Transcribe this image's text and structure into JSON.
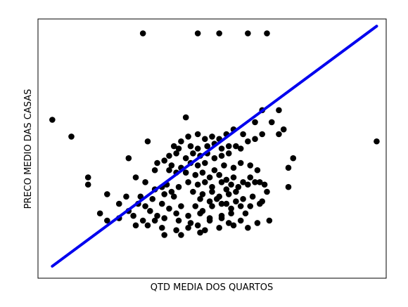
{
  "chart_data": {
    "type": "scatter",
    "title": "",
    "xlabel": "QTD MEDIA DOS QUARTOS",
    "ylabel": "PRECO MEDIO DAS CASAS",
    "show_ticks": false,
    "grid": false,
    "legend": "none",
    "xlim": [
      -0.3,
      14.3
    ],
    "ylim": [
      -0.5,
      10.3
    ],
    "colors": {
      "points": "#000000",
      "fit_line": "#0000ee",
      "frame": "#000000",
      "background": "#ffffff"
    },
    "series": [
      {
        "kind": "points",
        "points": [
          [
            4.1,
            9.7
          ],
          [
            6.4,
            9.7
          ],
          [
            7.3,
            9.7
          ],
          [
            8.5,
            9.7
          ],
          [
            9.3,
            9.7
          ],
          [
            0.3,
            6.1
          ],
          [
            1.1,
            5.4
          ],
          [
            13.9,
            5.2
          ],
          [
            5.9,
            6.2
          ],
          [
            9.1,
            6.5
          ],
          [
            9.8,
            6.5
          ],
          [
            8.8,
            6.0
          ],
          [
            9.5,
            6.0
          ],
          [
            10.0,
            5.7
          ],
          [
            9.8,
            5.5
          ],
          [
            9.1,
            5.5
          ],
          [
            8.8,
            5.3
          ],
          [
            8.5,
            5.2
          ],
          [
            8.3,
            5.5
          ],
          [
            7.9,
            5.7
          ],
          [
            7.6,
            5.5
          ],
          [
            7.3,
            5.3
          ],
          [
            7.0,
            5.4
          ],
          [
            6.7,
            5.3
          ],
          [
            6.4,
            5.5
          ],
          [
            6.0,
            5.4
          ],
          [
            5.7,
            5.2
          ],
          [
            5.4,
            5.0
          ],
          [
            5.6,
            4.9
          ],
          [
            6.1,
            5.0
          ],
          [
            6.4,
            4.9
          ],
          [
            6.8,
            5.0
          ],
          [
            7.1,
            5.1
          ],
          [
            7.4,
            4.9
          ],
          [
            7.7,
            5.0
          ],
          [
            8.0,
            5.0
          ],
          [
            8.2,
            4.9
          ],
          [
            4.3,
            5.2
          ],
          [
            5.2,
            4.6
          ],
          [
            5.5,
            4.7
          ],
          [
            5.9,
            4.5
          ],
          [
            6.2,
            4.7
          ],
          [
            6.5,
            4.6
          ],
          [
            6.8,
            4.7
          ],
          [
            7.1,
            4.5
          ],
          [
            7.4,
            4.6
          ],
          [
            7.7,
            4.7
          ],
          [
            3.5,
            4.5
          ],
          [
            4.7,
            4.3
          ],
          [
            5.0,
            4.4
          ],
          [
            5.3,
            4.2
          ],
          [
            5.7,
            4.1
          ],
          [
            6.1,
            4.3
          ],
          [
            6.4,
            4.2
          ],
          [
            6.7,
            4.3
          ],
          [
            7.1,
            4.0
          ],
          [
            7.5,
            4.2
          ],
          [
            7.9,
            4.1
          ],
          [
            8.2,
            4.3
          ],
          [
            8.6,
            4.2
          ],
          [
            8.9,
            4.0
          ],
          [
            10.4,
            4.5
          ],
          [
            10.2,
            4.1
          ],
          [
            4.6,
            4.0
          ],
          [
            5.2,
            4.0
          ],
          [
            5.5,
            3.9
          ],
          [
            5.9,
            3.9
          ],
          [
            6.3,
            3.8
          ],
          [
            6.6,
            3.9
          ],
          [
            6.9,
            3.7
          ],
          [
            7.3,
            3.8
          ],
          [
            7.6,
            3.6
          ],
          [
            7.9,
            3.7
          ],
          [
            8.3,
            3.5
          ],
          [
            8.6,
            3.7
          ],
          [
            9.0,
            3.5
          ],
          [
            1.8,
            3.7
          ],
          [
            3.8,
            3.7
          ],
          [
            4.2,
            3.5
          ],
          [
            5.1,
            3.4
          ],
          [
            5.6,
            3.3
          ],
          [
            6.0,
            3.5
          ],
          [
            6.4,
            3.4
          ],
          [
            6.7,
            3.5
          ],
          [
            7.0,
            3.3
          ],
          [
            7.4,
            3.5
          ],
          [
            7.6,
            3.2
          ],
          [
            7.8,
            3.4
          ],
          [
            8.1,
            3.3
          ],
          [
            8.5,
            3.4
          ],
          [
            8.8,
            3.5
          ],
          [
            9.2,
            3.4
          ],
          [
            1.8,
            3.4
          ],
          [
            4.6,
            3.2
          ],
          [
            4.9,
            3.3
          ],
          [
            5.3,
            3.1
          ],
          [
            6.2,
            3.1
          ],
          [
            6.6,
            3.0
          ],
          [
            7.0,
            3.1
          ],
          [
            7.3,
            2.9
          ],
          [
            7.7,
            3.0
          ],
          [
            8.0,
            3.1
          ],
          [
            9.3,
            3.1
          ],
          [
            10.2,
            3.3
          ],
          [
            2.6,
            3.0
          ],
          [
            3.4,
            2.9
          ],
          [
            4.0,
            2.9
          ],
          [
            4.5,
            2.8
          ],
          [
            5.0,
            3.0
          ],
          [
            5.4,
            2.9
          ],
          [
            6.5,
            2.8
          ],
          [
            6.9,
            2.7
          ],
          [
            7.2,
            2.8
          ],
          [
            7.6,
            2.6
          ],
          [
            8.0,
            2.7
          ],
          [
            8.3,
            2.8
          ],
          [
            8.7,
            2.9
          ],
          [
            9.1,
            2.7
          ],
          [
            3.1,
            2.6
          ],
          [
            3.9,
            2.6
          ],
          [
            4.2,
            2.5
          ],
          [
            4.9,
            2.6
          ],
          [
            5.2,
            2.4
          ],
          [
            5.7,
            2.5
          ],
          [
            6.3,
            2.5
          ],
          [
            6.6,
            2.3
          ],
          [
            7.0,
            2.5
          ],
          [
            7.4,
            2.6
          ],
          [
            7.8,
            2.4
          ],
          [
            8.2,
            2.5
          ],
          [
            8.6,
            2.5
          ],
          [
            9.0,
            2.6
          ],
          [
            2.3,
            2.2
          ],
          [
            3.5,
            2.3
          ],
          [
            4.4,
            2.3
          ],
          [
            4.7,
            2.1
          ],
          [
            5.5,
            2.2
          ],
          [
            6.0,
            2.1
          ],
          [
            6.5,
            2.2
          ],
          [
            6.9,
            2.0
          ],
          [
            7.4,
            2.1
          ],
          [
            7.8,
            2.2
          ],
          [
            8.4,
            2.2
          ],
          [
            2.6,
            1.9
          ],
          [
            3.1,
            2.0
          ],
          [
            3.7,
            2.1
          ],
          [
            4.1,
            1.9
          ],
          [
            4.6,
            1.9
          ],
          [
            5.0,
            2.0
          ],
          [
            5.6,
            1.9
          ],
          [
            6.1,
            1.8
          ],
          [
            6.4,
            1.7
          ],
          [
            6.9,
            1.9
          ],
          [
            7.4,
            2.0
          ],
          [
            7.7,
            1.8
          ],
          [
            8.2,
            1.9
          ],
          [
            8.9,
            1.8
          ],
          [
            9.4,
            1.9
          ],
          [
            3.8,
            1.7
          ],
          [
            4.3,
            1.7
          ],
          [
            4.9,
            1.6
          ],
          [
            5.5,
            1.5
          ],
          [
            6.0,
            1.6
          ],
          [
            6.7,
            1.5
          ],
          [
            7.3,
            1.6
          ],
          [
            7.9,
            1.7
          ],
          [
            8.5,
            1.6
          ],
          [
            5.0,
            1.3
          ],
          [
            5.7,
            1.3
          ],
          [
            6.5,
            1.4
          ]
        ]
      },
      {
        "kind": "fit_line",
        "x": [
          0.3,
          13.9
        ],
        "y": [
          0.0,
          10.0
        ]
      }
    ]
  }
}
